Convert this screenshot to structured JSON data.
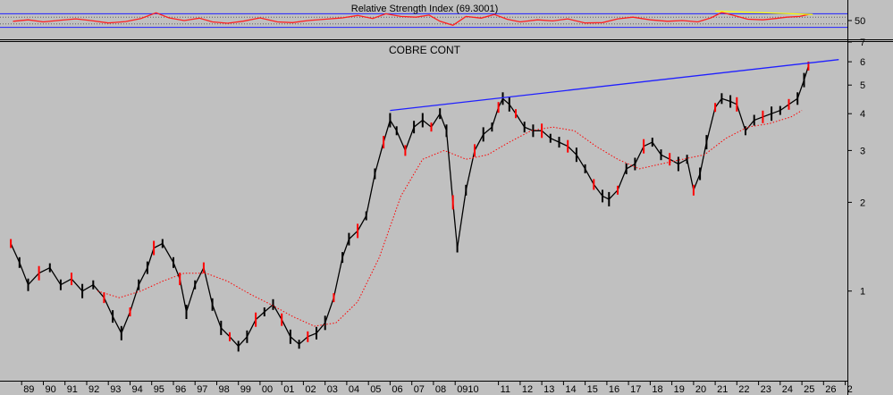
{
  "chart_data": [
    {
      "type": "line",
      "title": "Relative Strength Index (69.3001)",
      "ylim": [
        0,
        100
      ],
      "yticks": [
        {
          "value": 50,
          "label": "50"
        }
      ],
      "reference_lines": [
        {
          "value": 30,
          "color": "#2020ff",
          "style": "solid"
        },
        {
          "value": 40,
          "color": "#606060",
          "style": "dotted"
        },
        {
          "value": 60,
          "color": "#606060",
          "style": "dotted"
        },
        {
          "value": 70,
          "color": "#2020ff",
          "style": "solid"
        }
      ],
      "series": [
        {
          "color": "#ff2020",
          "x": [
            1988.6,
            1989.3,
            1990.0,
            1990.8,
            1991.5,
            1992.2,
            1993.0,
            1993.8,
            1994.5,
            1995.2,
            1995.8,
            1996.5,
            1997.2,
            1997.8,
            1998.5,
            1999.2,
            2000.0,
            2000.8,
            2001.5,
            2002.2,
            2003.0,
            2003.8,
            2004.5,
            2005.2,
            2005.8,
            2006.5,
            2007.2,
            2007.8,
            2008.3,
            2008.9,
            2009.5,
            2010.2,
            2010.8,
            2011.4,
            2012.0,
            2012.8,
            2013.5,
            2014.2,
            2015.0,
            2015.8,
            2016.5,
            2017.2,
            2018.0,
            2018.8,
            2019.5,
            2020.2,
            2020.8,
            2021.3,
            2021.8,
            2022.5,
            2023.2,
            2023.8,
            2024.3,
            2024.9,
            2025.3
          ],
          "values": [
            48,
            52,
            46,
            51,
            55,
            50,
            43,
            47,
            56,
            73,
            58,
            50,
            57,
            46,
            42,
            48,
            58,
            46,
            44,
            50,
            54,
            58,
            65,
            56,
            70,
            62,
            60,
            66,
            48,
            36,
            62,
            57,
            68,
            54,
            46,
            52,
            49,
            55,
            43,
            44,
            55,
            60,
            52,
            48,
            50,
            46,
            58,
            74,
            66,
            54,
            52,
            56,
            60,
            62,
            68
          ]
        },
        {
          "color": "#ffff00",
          "x": [
            2021.0,
            2025.5
          ],
          "values": [
            78,
            68
          ]
        }
      ]
    },
    {
      "type": "line",
      "title": "COBRE CONT",
      "scale": "log",
      "ylim": [
        0.5,
        7
      ],
      "yticks": [
        {
          "value": 1,
          "label": "1"
        },
        {
          "value": 2,
          "label": "2"
        },
        {
          "value": 3,
          "label": "3"
        },
        {
          "value": 4,
          "label": "4"
        },
        {
          "value": 5,
          "label": "5"
        },
        {
          "value": 6,
          "label": "6"
        },
        {
          "value": 7,
          "label": "7"
        }
      ],
      "xticks": [
        {
          "value": 1989,
          "label": "89"
        },
        {
          "value": 1990,
          "label": "90"
        },
        {
          "value": 1991,
          "label": "91"
        },
        {
          "value": 1992,
          "label": "92"
        },
        {
          "value": 1993,
          "label": "93"
        },
        {
          "value": 1994,
          "label": "94"
        },
        {
          "value": 1995,
          "label": "95"
        },
        {
          "value": 1996,
          "label": "96"
        },
        {
          "value": 1997,
          "label": "97"
        },
        {
          "value": 1998,
          "label": "98"
        },
        {
          "value": 1999,
          "label": "99"
        },
        {
          "value": 2000,
          "label": "00"
        },
        {
          "value": 2001,
          "label": "01"
        },
        {
          "value": 2002,
          "label": "02"
        },
        {
          "value": 2003,
          "label": "03"
        },
        {
          "value": 2004,
          "label": "04"
        },
        {
          "value": 2005,
          "label": "05"
        },
        {
          "value": 2006,
          "label": "06"
        },
        {
          "value": 2007,
          "label": "07"
        },
        {
          "value": 2008,
          "label": "08"
        },
        {
          "value": 2009,
          "label": "0910"
        },
        {
          "value": 2011,
          "label": "11"
        },
        {
          "value": 2012,
          "label": "12"
        },
        {
          "value": 2013,
          "label": "13"
        },
        {
          "value": 2014,
          "label": "14"
        },
        {
          "value": 2015,
          "label": "15"
        },
        {
          "value": 2016,
          "label": "16"
        },
        {
          "value": 2017,
          "label": "17"
        },
        {
          "value": 2018,
          "label": "18"
        },
        {
          "value": 2019,
          "label": "19"
        },
        {
          "value": 2020,
          "label": "20"
        },
        {
          "value": 2021,
          "label": "21"
        },
        {
          "value": 2022,
          "label": "22"
        },
        {
          "value": 2023,
          "label": "23"
        },
        {
          "value": 2024,
          "label": "24"
        },
        {
          "value": 2025,
          "label": "25"
        },
        {
          "value": 2026,
          "label": "26"
        },
        {
          "value": 2027,
          "label": "2"
        }
      ],
      "series": [
        {
          "color": "#000000",
          "x": [
            1988.5,
            1988.9,
            1989.3,
            1989.8,
            1990.3,
            1990.8,
            1991.3,
            1991.8,
            1992.3,
            1992.8,
            1993.2,
            1993.6,
            1994.0,
            1994.4,
            1994.8,
            1995.1,
            1995.5,
            1996.0,
            1996.3,
            1996.6,
            1997.0,
            1997.4,
            1997.8,
            1998.2,
            1998.6,
            1999.0,
            1999.4,
            1999.8,
            2000.2,
            2000.6,
            2001.0,
            2001.4,
            2001.8,
            2002.2,
            2002.6,
            2003.0,
            2003.4,
            2003.8,
            2004.1,
            2004.5,
            2004.9,
            2005.3,
            2005.7,
            2006.0,
            2006.3,
            2006.7,
            2007.1,
            2007.5,
            2007.9,
            2008.3,
            2008.6,
            2008.9,
            2009.1,
            2009.5,
            2009.9,
            2010.3,
            2010.7,
            2011.0,
            2011.2,
            2011.5,
            2011.8,
            2012.2,
            2012.6,
            2013.0,
            2013.4,
            2013.8,
            2014.2,
            2014.6,
            2015.0,
            2015.4,
            2015.8,
            2016.1,
            2016.5,
            2016.9,
            2017.3,
            2017.7,
            2018.1,
            2018.5,
            2018.9,
            2019.3,
            2019.7,
            2020.0,
            2020.3,
            2020.6,
            2021.0,
            2021.3,
            2021.7,
            2022.0,
            2022.4,
            2022.8,
            2023.2,
            2023.6,
            2024.0,
            2024.4,
            2024.8,
            2025.1,
            2025.3
          ],
          "values": [
            1.45,
            1.25,
            1.05,
            1.15,
            1.2,
            1.05,
            1.1,
            1.0,
            1.05,
            0.95,
            0.82,
            0.72,
            0.85,
            1.05,
            1.2,
            1.4,
            1.45,
            1.25,
            1.1,
            0.85,
            1.05,
            1.2,
            0.9,
            0.75,
            0.7,
            0.65,
            0.7,
            0.8,
            0.85,
            0.9,
            0.8,
            0.7,
            0.66,
            0.7,
            0.72,
            0.78,
            0.95,
            1.3,
            1.5,
            1.6,
            1.8,
            2.5,
            3.2,
            3.8,
            3.5,
            3.0,
            3.6,
            3.8,
            3.6,
            4.0,
            3.5,
            2.0,
            1.4,
            2.2,
            3.0,
            3.4,
            3.6,
            4.2,
            4.5,
            4.3,
            4.0,
            3.6,
            3.5,
            3.5,
            3.3,
            3.2,
            3.1,
            2.9,
            2.6,
            2.3,
            2.1,
            2.05,
            2.2,
            2.6,
            2.7,
            3.1,
            3.2,
            2.9,
            2.8,
            2.7,
            2.8,
            2.2,
            2.5,
            3.2,
            4.2,
            4.5,
            4.4,
            4.3,
            3.5,
            3.8,
            3.9,
            4.0,
            4.1,
            4.3,
            4.5,
            5.2,
            5.8
          ]
        },
        {
          "color": "#ff0000",
          "style": "dotted",
          "x": [
            1992.5,
            1993.5,
            1994.5,
            1995.5,
            1996.5,
            1997.5,
            1998.5,
            1999.5,
            2000.5,
            2001.5,
            2002.5,
            2003.5,
            2004.5,
            2005.5,
            2006.5,
            2007.5,
            2008.5,
            2009.5,
            2010.5,
            2011.5,
            2012.5,
            2013.5,
            2014.5,
            2015.5,
            2016.5,
            2017.5,
            2018.5,
            2019.5,
            2020.5,
            2021.5,
            2022.5,
            2023.5,
            2024.5,
            2025.0
          ],
          "values": [
            1.0,
            0.95,
            1.0,
            1.08,
            1.15,
            1.15,
            1.08,
            0.98,
            0.9,
            0.82,
            0.76,
            0.78,
            0.92,
            1.3,
            2.1,
            2.8,
            3.0,
            2.8,
            2.9,
            3.2,
            3.5,
            3.6,
            3.5,
            3.1,
            2.8,
            2.6,
            2.7,
            2.8,
            2.9,
            3.3,
            3.6,
            3.7,
            3.9,
            4.1
          ]
        },
        {
          "color": "#2020ff",
          "x": [
            2006.0,
            2026.7
          ],
          "values": [
            4.1,
            6.1
          ]
        }
      ]
    }
  ]
}
